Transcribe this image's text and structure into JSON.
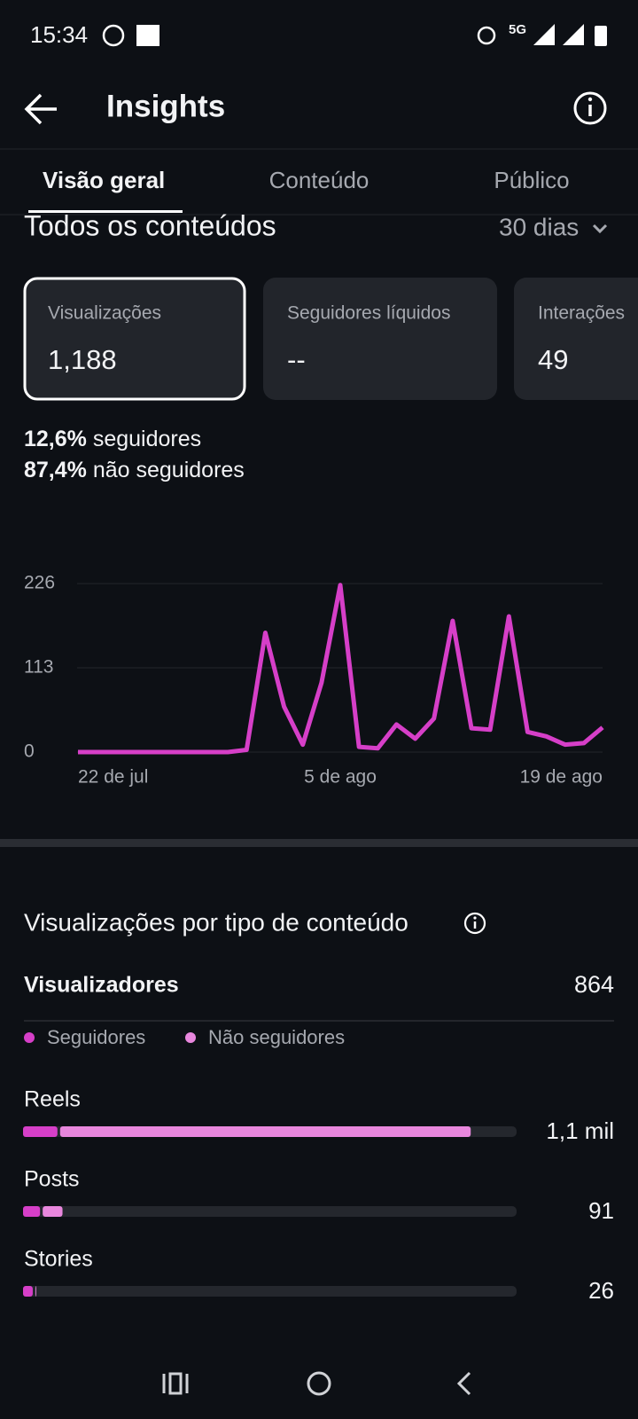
{
  "status_bar": {
    "time": "15:34",
    "network": "5G"
  },
  "header": {
    "title": "Insights"
  },
  "tabs": [
    "Visão geral",
    "Conteúdo",
    "Público"
  ],
  "section": {
    "title": "Todos os conteúdos",
    "period": "30 dias"
  },
  "cards": [
    {
      "label": "Visualizações",
      "value": "1,188"
    },
    {
      "label": "Seguidores líquidos",
      "value": "--"
    },
    {
      "label": "Interações",
      "value": "49"
    }
  ],
  "split": [
    {
      "pct": "12,6%",
      "label": "seguidores"
    },
    {
      "pct": "87,4%",
      "label": "não seguidores"
    }
  ],
  "viewers": {
    "label": "Visualizadores",
    "value": 864
  },
  "chart_data": [
    {
      "type": "line",
      "categories": [
        "22 de jul",
        null,
        null,
        null,
        null,
        null,
        null,
        null,
        null,
        null,
        null,
        null,
        null,
        null,
        "5 de ago",
        null,
        null,
        null,
        null,
        null,
        null,
        null,
        null,
        null,
        null,
        null,
        null,
        null,
        "19 de ago"
      ],
      "values": [
        0,
        0,
        0,
        0,
        0,
        0,
        0,
        0,
        0,
        3,
        160,
        61,
        10,
        93,
        224,
        7,
        5,
        37,
        18,
        45,
        176,
        32,
        30,
        182,
        27,
        21,
        10,
        12,
        33
      ],
      "color": "#d63fc8",
      "ylim": [
        0,
        226
      ],
      "yticks": [
        0,
        113,
        226
      ],
      "grid": true
    },
    {
      "type": "stacked_bar_horizontal",
      "title": "Visualizações por tipo de conteúdo",
      "categories": [
        "Reels",
        "Posts",
        "Stories"
      ],
      "series": [
        {
          "name": "Seguidores",
          "color": "#d63fc8",
          "values": [
            85,
            42,
            24
          ]
        },
        {
          "name": "Não seguidores",
          "color": "#e887dd",
          "values": [
            1015,
            49,
            2
          ]
        }
      ],
      "totals": [
        {
          "value": 1100,
          "label": "1,1 mil"
        },
        91,
        26
      ],
      "xlim": [
        0,
        1220
      ]
    }
  ]
}
